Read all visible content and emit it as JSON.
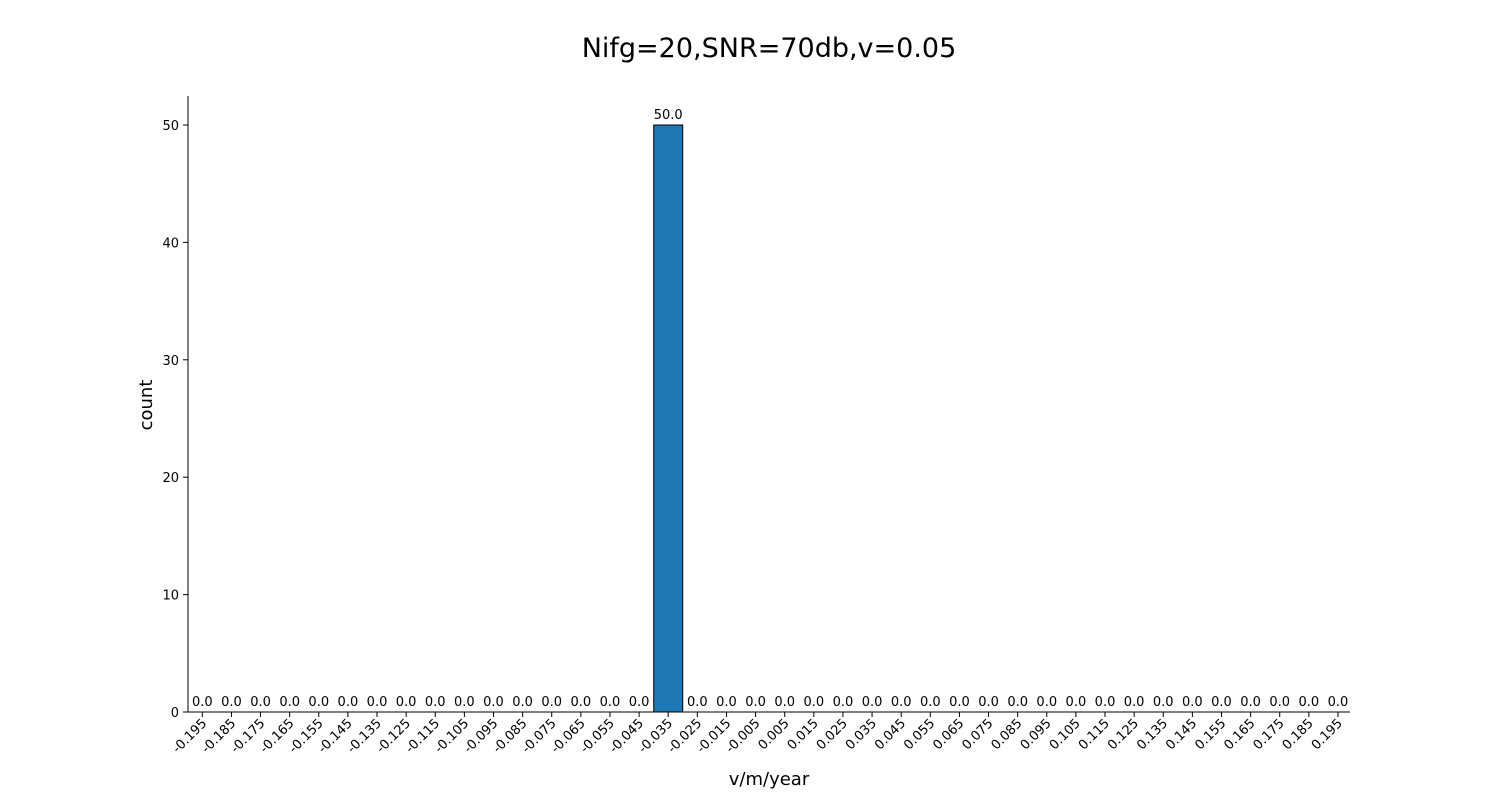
{
  "chart_data": {
    "type": "bar",
    "title": "Nifg=20,SNR=70db,v=0.05",
    "xlabel": "v/m/year",
    "ylabel": "count",
    "categories": [
      "-0.195",
      "-0.185",
      "-0.175",
      "-0.165",
      "-0.155",
      "-0.145",
      "-0.135",
      "-0.125",
      "-0.115",
      "-0.105",
      "-0.095",
      "-0.085",
      "-0.075",
      "-0.065",
      "-0.055",
      "-0.045",
      "-0.035",
      "-0.025",
      "-0.015",
      "-0.005",
      "0.005",
      "0.015",
      "0.025",
      "0.035",
      "0.045",
      "0.055",
      "0.065",
      "0.075",
      "0.085",
      "0.095",
      "0.105",
      "0.115",
      "0.125",
      "0.135",
      "0.145",
      "0.155",
      "0.165",
      "0.175",
      "0.185",
      "0.195"
    ],
    "values": [
      0,
      0,
      0,
      0,
      0,
      0,
      0,
      0,
      0,
      0,
      0,
      0,
      0,
      0,
      0,
      0,
      50,
      0,
      0,
      0,
      0,
      0,
      0,
      0,
      0,
      0,
      0,
      0,
      0,
      0,
      0,
      0,
      0,
      0,
      0,
      0,
      0,
      0,
      0,
      0
    ],
    "data_labels": [
      "0.0",
      "0.0",
      "0.0",
      "0.0",
      "0.0",
      "0.0",
      "0.0",
      "0.0",
      "0.0",
      "0.0",
      "0.0",
      "0.0",
      "0.0",
      "0.0",
      "0.0",
      "0.0",
      "50.0",
      "0.0",
      "0.0",
      "0.0",
      "0.0",
      "0.0",
      "0.0",
      "0.0",
      "0.0",
      "0.0",
      "0.0",
      "0.0",
      "0.0",
      "0.0",
      "0.0",
      "0.0",
      "0.0",
      "0.0",
      "0.0",
      "0.0",
      "0.0",
      "0.0",
      "0.0",
      "0.0"
    ],
    "yticks": [
      "0",
      "10",
      "20",
      "30",
      "40",
      "50"
    ],
    "ylim": [
      0,
      52.5
    ],
    "bar_color": "#1f77b4",
    "edge_color": "#000000",
    "grid": false
  }
}
